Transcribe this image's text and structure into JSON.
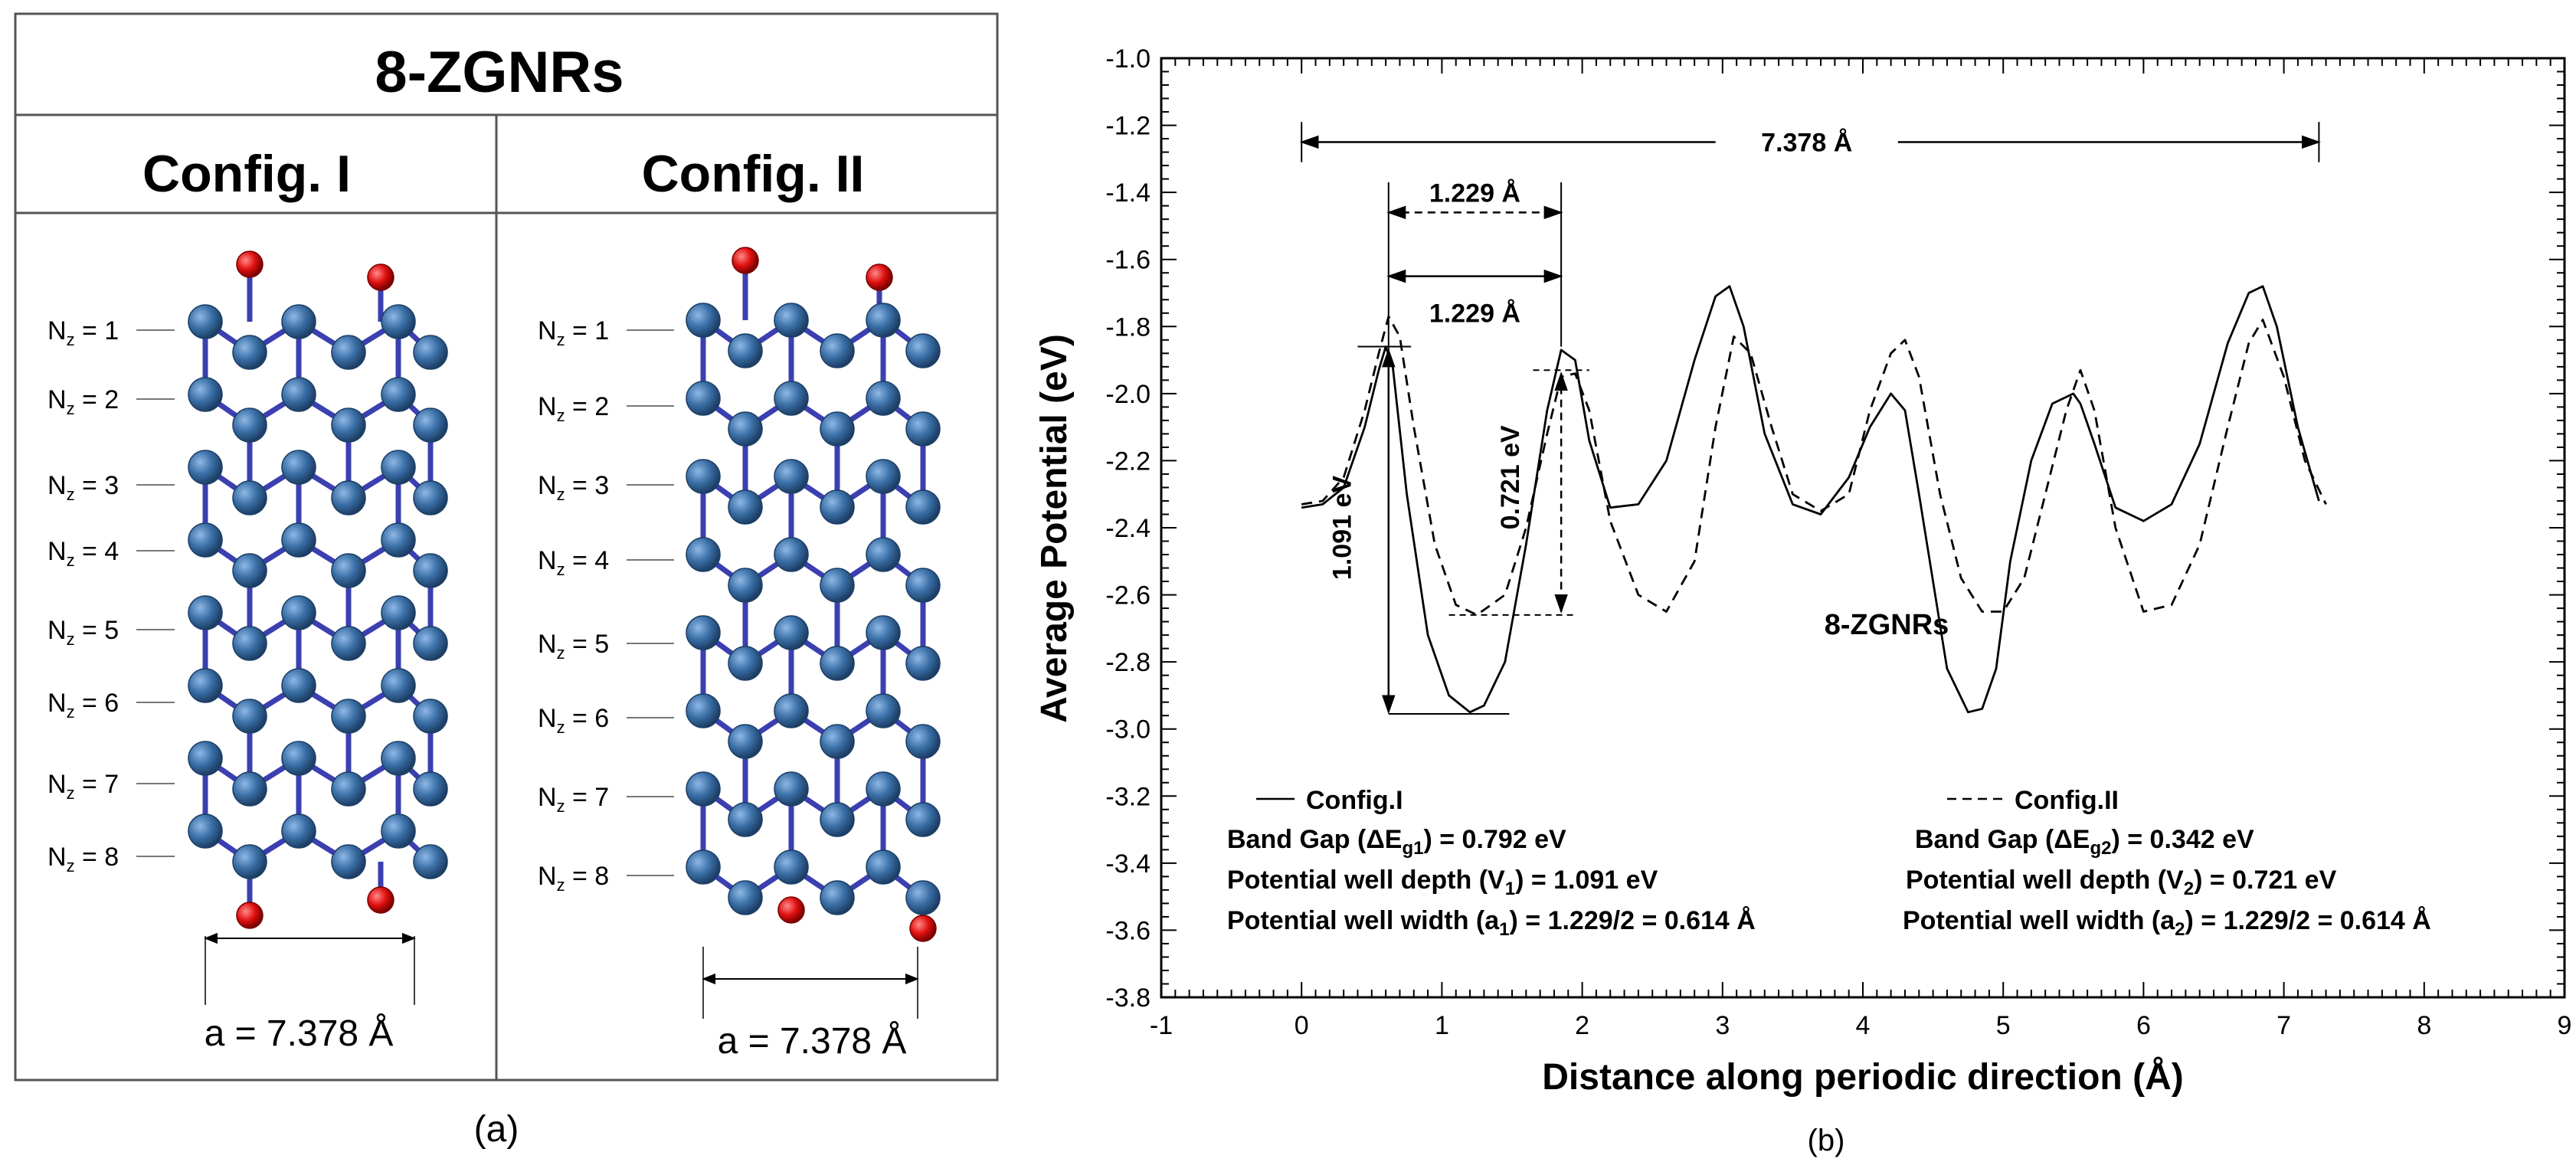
{
  "panel_a": {
    "title": "8-ZGNRs",
    "columns": [
      {
        "header": "Config. I",
        "rows": [
          {
            "base": "N",
            "sub": "z",
            "suffix": " = 1"
          },
          {
            "base": "N",
            "sub": "z",
            "suffix": " = 2"
          },
          {
            "base": "N",
            "sub": "z",
            "suffix": " = 3"
          },
          {
            "base": "N",
            "sub": "z",
            "suffix": " = 4"
          },
          {
            "base": "N",
            "sub": "z",
            "suffix": " = 5"
          },
          {
            "base": "N",
            "sub": "z",
            "suffix": " = 6"
          },
          {
            "base": "N",
            "sub": "z",
            "suffix": " = 7"
          },
          {
            "base": "N",
            "sub": "z",
            "suffix": " = 8"
          }
        ],
        "lattice_label": "a = 7.378 Å"
      },
      {
        "header": "Config. II",
        "rows": [
          {
            "base": "N",
            "sub": "z",
            "suffix": " = 1"
          },
          {
            "base": "N",
            "sub": "z",
            "suffix": " = 2"
          },
          {
            "base": "N",
            "sub": "z",
            "suffix": " = 3"
          },
          {
            "base": "N",
            "sub": "z",
            "suffix": " = 4"
          },
          {
            "base": "N",
            "sub": "z",
            "suffix": " = 5"
          },
          {
            "base": "N",
            "sub": "z",
            "suffix": " = 6"
          },
          {
            "base": "N",
            "sub": "z",
            "suffix": " = 7"
          },
          {
            "base": "N",
            "sub": "z",
            "suffix": " = 8"
          }
        ],
        "lattice_label": "a = 7.378 Å"
      }
    ],
    "caption": "(a)",
    "colors": {
      "carbon": "#3a6fa6",
      "oxygen": "#e01010",
      "bond": "#3b3fb0"
    }
  },
  "chart_data": {
    "type": "line",
    "caption": "(b)",
    "xlabel": "Distance along periodic direction (Å)",
    "ylabel": "Average Potential (eV)",
    "xlim": [
      -1,
      9
    ],
    "ylim": [
      -3.8,
      -1.0
    ],
    "xticks": [
      "-1",
      "0",
      "1",
      "2",
      "3",
      "4",
      "5",
      "6",
      "7",
      "8",
      "9"
    ],
    "yticks": [
      "-1.0",
      "-1.2",
      "-1.4",
      "-1.6",
      "-1.8",
      "-2.0",
      "-2.2",
      "-2.4",
      "-2.6",
      "-2.8",
      "-3.0",
      "-3.2",
      "-3.4",
      "-3.6",
      "-3.8"
    ],
    "inner_label": "8-ZGNRs",
    "series": [
      {
        "name": "Config.I",
        "style": "solid",
        "x": [
          0,
          0.15,
          0.3,
          0.45,
          0.55,
          0.6,
          0.65,
          0.75,
          0.9,
          1.05,
          1.2,
          1.3,
          1.45,
          1.6,
          1.75,
          1.85,
          1.95,
          2.05,
          2.2,
          2.4,
          2.6,
          2.8,
          2.95,
          3.05,
          3.15,
          3.3,
          3.5,
          3.7,
          3.9,
          4.05,
          4.2,
          4.3,
          4.4,
          4.6,
          4.75,
          4.85,
          4.95,
          5.05,
          5.2,
          5.35,
          5.5,
          5.55,
          5.65,
          5.8,
          6.0,
          6.2,
          6.4,
          6.6,
          6.75,
          6.85,
          6.95,
          7.1,
          7.25
        ],
        "y": [
          -2.34,
          -2.33,
          -2.28,
          -2.1,
          -1.93,
          -1.86,
          -1.92,
          -2.3,
          -2.72,
          -2.9,
          -2.95,
          -2.93,
          -2.8,
          -2.45,
          -2.05,
          -1.87,
          -1.9,
          -2.14,
          -2.34,
          -2.33,
          -2.2,
          -1.9,
          -1.71,
          -1.68,
          -1.8,
          -2.12,
          -2.33,
          -2.36,
          -2.25,
          -2.1,
          -2.0,
          -2.05,
          -2.3,
          -2.82,
          -2.95,
          -2.94,
          -2.82,
          -2.5,
          -2.2,
          -2.03,
          -2.0,
          -2.03,
          -2.15,
          -2.34,
          -2.38,
          -2.33,
          -2.15,
          -1.85,
          -1.7,
          -1.68,
          -1.8,
          -2.1,
          -2.32
        ]
      },
      {
        "name": "Config.II",
        "style": "dashed",
        "x": [
          0,
          0.15,
          0.3,
          0.45,
          0.55,
          0.62,
          0.7,
          0.8,
          0.95,
          1.1,
          1.25,
          1.45,
          1.6,
          1.75,
          1.85,
          1.95,
          2.05,
          2.2,
          2.4,
          2.6,
          2.8,
          2.95,
          3.08,
          3.2,
          3.35,
          3.5,
          3.7,
          3.9,
          4.05,
          4.2,
          4.3,
          4.4,
          4.55,
          4.7,
          4.85,
          5.0,
          5.15,
          5.3,
          5.45,
          5.55,
          5.65,
          5.8,
          6.0,
          6.2,
          6.4,
          6.6,
          6.75,
          6.85,
          7.0,
          7.15,
          7.3
        ],
        "y": [
          -2.33,
          -2.32,
          -2.25,
          -2.05,
          -1.88,
          -1.77,
          -1.83,
          -2.1,
          -2.45,
          -2.63,
          -2.66,
          -2.6,
          -2.4,
          -2.12,
          -1.95,
          -1.94,
          -2.05,
          -2.38,
          -2.6,
          -2.65,
          -2.5,
          -2.1,
          -1.83,
          -1.88,
          -2.1,
          -2.3,
          -2.35,
          -2.3,
          -2.05,
          -1.88,
          -1.84,
          -1.95,
          -2.3,
          -2.55,
          -2.65,
          -2.65,
          -2.55,
          -2.3,
          -2.05,
          -1.93,
          -2.05,
          -2.4,
          -2.65,
          -2.63,
          -2.45,
          -2.1,
          -1.85,
          -1.78,
          -1.95,
          -2.2,
          -2.33
        ]
      }
    ],
    "annotations": {
      "period_label": "7.378 Å",
      "width_dashed_label": "1.229 Å",
      "width_solid_label": "1.229 Å",
      "depth1_label": "1.091 eV",
      "depth2_label": "0.721 eV"
    },
    "legend": {
      "config1": {
        "name": "Config.I",
        "band_gap": {
          "pre": "Band Gap (ΔE",
          "sub": "g1",
          "post": ") = 0.792 eV"
        },
        "depth": {
          "pre": "Potential well depth (V",
          "sub": "1",
          "post": ") = 1.091 eV"
        },
        "width": {
          "pre": "Potential well width (a",
          "sub": "1",
          "post": ") = 1.229/2 = 0.614 Å"
        }
      },
      "config2": {
        "name": "Config.II",
        "band_gap": {
          "pre": "Band Gap (ΔE",
          "sub": "g2",
          "post": ") = 0.342 eV"
        },
        "depth": {
          "pre": "Potential well depth (V",
          "sub": "2",
          "post": ") = 0.721 eV"
        },
        "width": {
          "pre": "Potential well width (a",
          "sub": "2",
          "post": ") = 1.229/2 = 0.614 Å"
        }
      }
    }
  }
}
